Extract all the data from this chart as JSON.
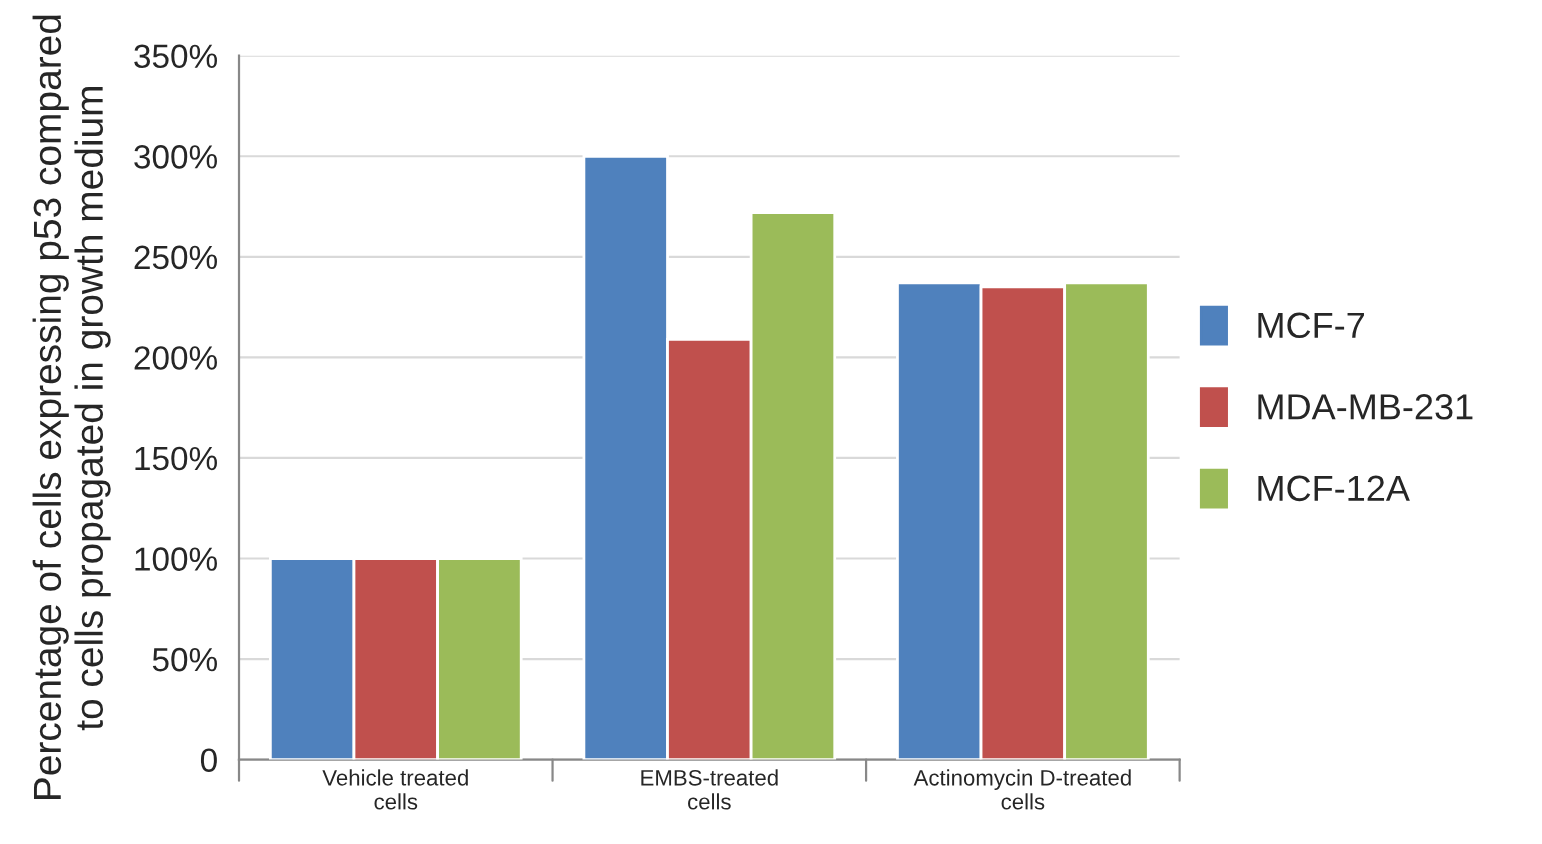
{
  "chart_data": {
    "type": "bar",
    "ylabel": "Percentage of cells expressing p53 compared\nto cells propagated in growth medium",
    "categories": [
      "Vehicle treated\ncells",
      "EMBS-treated\ncells",
      "Actinomycin D-treated\ncells"
    ],
    "series": [
      {
        "name": "MCF-7",
        "color": "#4f81bd",
        "values": [
          100,
          300,
          237
        ]
      },
      {
        "name": "MDA-MB-231",
        "color": "#c0504d",
        "values": [
          100,
          209,
          235
        ]
      },
      {
        "name": "MCF-12A",
        "color": "#9bbb59",
        "values": [
          100,
          272,
          237
        ]
      }
    ],
    "ylim": [
      0,
      350
    ],
    "yticks": [
      {
        "value": 0,
        "label": "0"
      },
      {
        "value": 50,
        "label": "50%"
      },
      {
        "value": 100,
        "label": "100%"
      },
      {
        "value": 150,
        "label": "150%"
      },
      {
        "value": 200,
        "label": "200%"
      },
      {
        "value": 250,
        "label": "250%"
      },
      {
        "value": 300,
        "label": "300%"
      },
      {
        "value": 350,
        "label": "350%"
      }
    ],
    "grid": "y",
    "legend": "right"
  }
}
